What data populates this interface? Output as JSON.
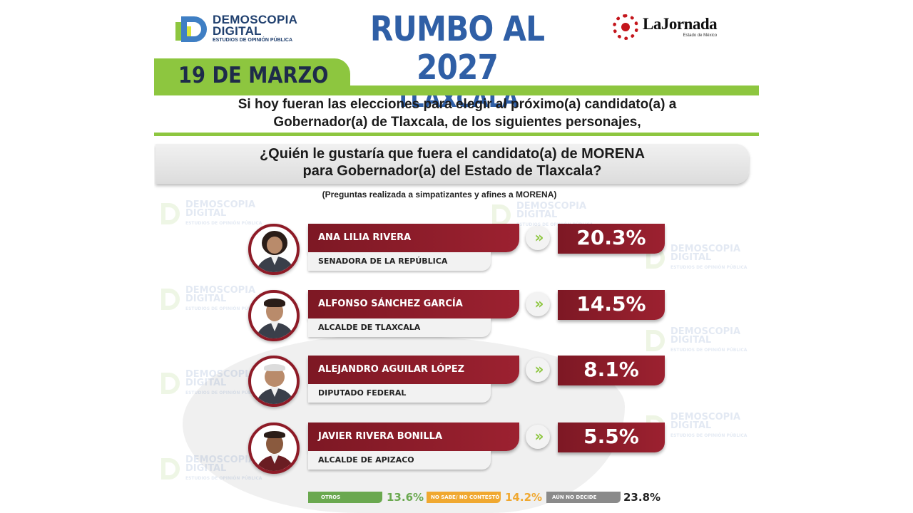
{
  "header": {
    "logo_left": {
      "line1": "DEMOSCOPIA",
      "line2": "DIGITAL",
      "tagline": "ESTUDIOS DE OPINIÓN PÚBLICA"
    },
    "title": "RUMBO AL 2027",
    "subtitle": "TLAXCALA",
    "logo_right": {
      "name": "LaJornada",
      "sub": "Estado de México"
    }
  },
  "date": "19 DE MARZO",
  "intro": [
    "Si hoy fueran las elecciones para elegir al próximo(a) candidato(a) a",
    "Gobernador(a) de Tlaxcala, de los siguientes personajes,"
  ],
  "question": [
    "¿Quién le gustaría que fuera el candidato(a) de MORENA",
    "para Gobernador(a) del Estado de Tlaxcala?"
  ],
  "note": "(Preguntas realizada a simpatizantes y afines a MORENA)",
  "candidates": [
    {
      "name": "ANA LILIA RIVERA",
      "role": "SENADORA DE LA REPÚBLICA",
      "pct": "20.3%"
    },
    {
      "name": "ALFONSO SÁNCHEZ GARCÍA",
      "role": "ALCALDE DE TLAXCALA",
      "pct": "14.5%"
    },
    {
      "name": "ALEJANDRO AGUILAR LÓPEZ",
      "role": "DIPUTADO FEDERAL",
      "pct": "8.1%"
    },
    {
      "name": "JAVIER RIVERA BONILLA",
      "role": "ALCALDE DE APIZACO",
      "pct": "5.5%"
    }
  ],
  "footer": [
    {
      "label": "OTROS",
      "value": "13.6%",
      "color": "#6aa84f"
    },
    {
      "label": "NO SABE/ NO CONTESTÓ",
      "value": "14.2%",
      "color": "#f0a830"
    },
    {
      "label": "AÚN NO DECIDE",
      "value": "23.8%",
      "color": "#8a8a8a"
    }
  ],
  "watermark": {
    "line1": "DEMOSCOPIA",
    "line2": "DIGITAL",
    "tagline": "ESTUDIOS DE OPINIÓN PÚBLICA"
  },
  "colors": {
    "brand_green": "#8dc63f",
    "title_blue": "#2f5fa6",
    "maroon": "#8e1b27"
  }
}
